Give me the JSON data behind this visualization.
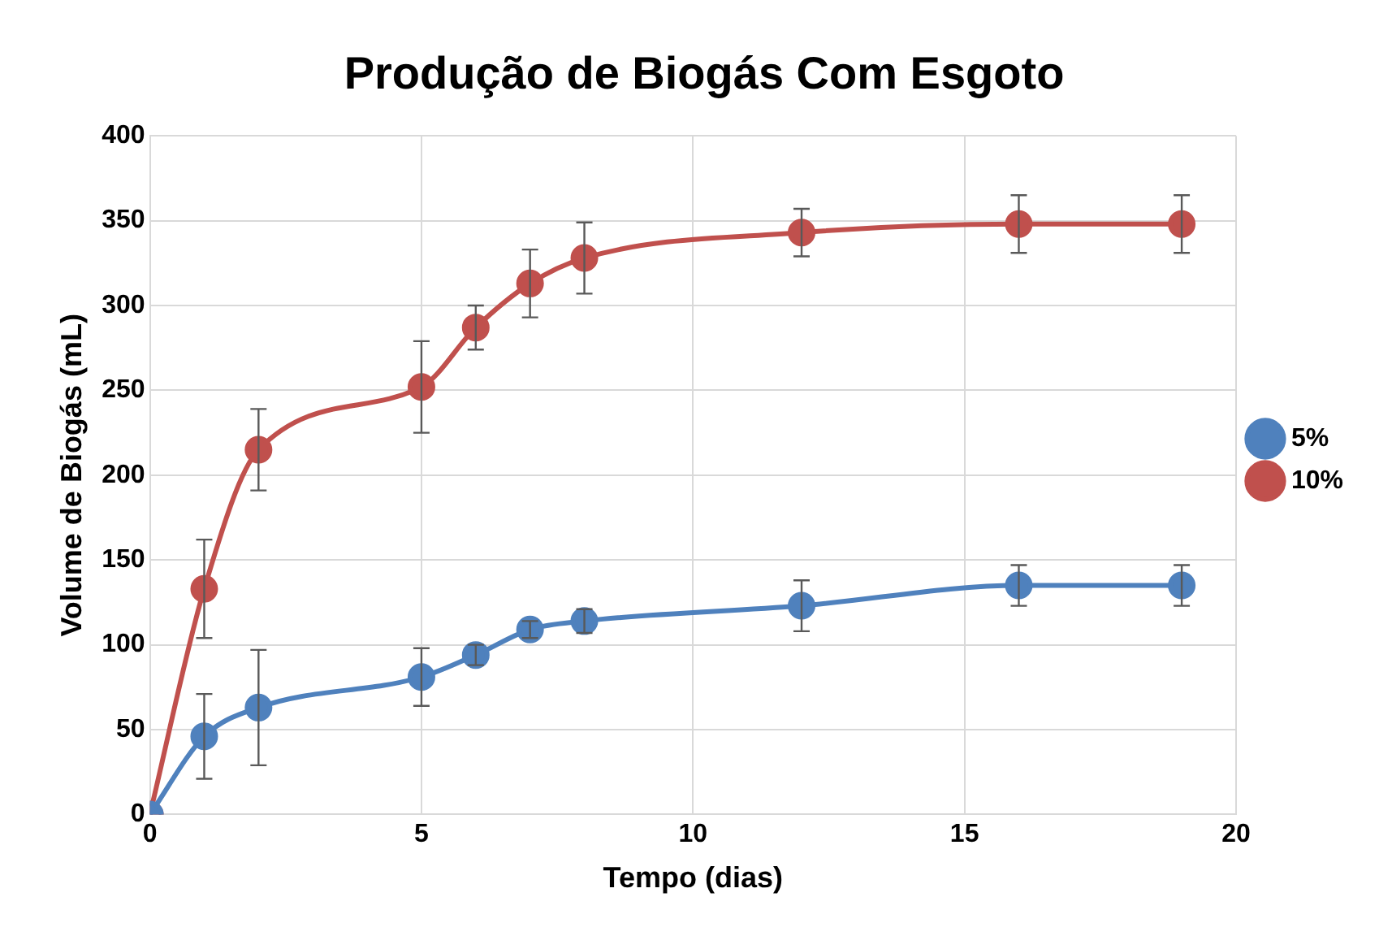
{
  "chart_data": {
    "type": "line",
    "title": "Produção de Biogás Com Esgoto",
    "xlabel": "Tempo (dias)",
    "ylabel": "Volume de Biogás (mL)",
    "x": [
      0,
      1,
      2,
      5,
      6,
      7,
      8,
      12,
      16,
      19
    ],
    "series": [
      {
        "name": "5%",
        "color": "#4f81bd",
        "values": [
          0,
          46,
          63,
          81,
          94,
          109,
          114,
          123,
          135,
          135
        ],
        "errors": [
          null,
          25,
          34,
          17,
          6,
          5,
          7,
          15,
          12,
          12
        ]
      },
      {
        "name": "10%",
        "color": "#c0504d",
        "values": [
          0,
          133,
          215,
          252,
          287,
          313,
          328,
          343,
          348,
          348
        ],
        "errors": [
          null,
          29,
          24,
          27,
          13,
          20,
          21,
          14,
          17,
          17
        ]
      }
    ],
    "xlim": [
      0,
      20
    ],
    "xticks": [
      0,
      5,
      10,
      15,
      20
    ],
    "ylim": [
      0,
      400
    ],
    "yticks": [
      0,
      50,
      100,
      150,
      200,
      250,
      300,
      350,
      400
    ],
    "grid": true,
    "legend": "right",
    "marker": "circle",
    "line_style": "solid"
  }
}
